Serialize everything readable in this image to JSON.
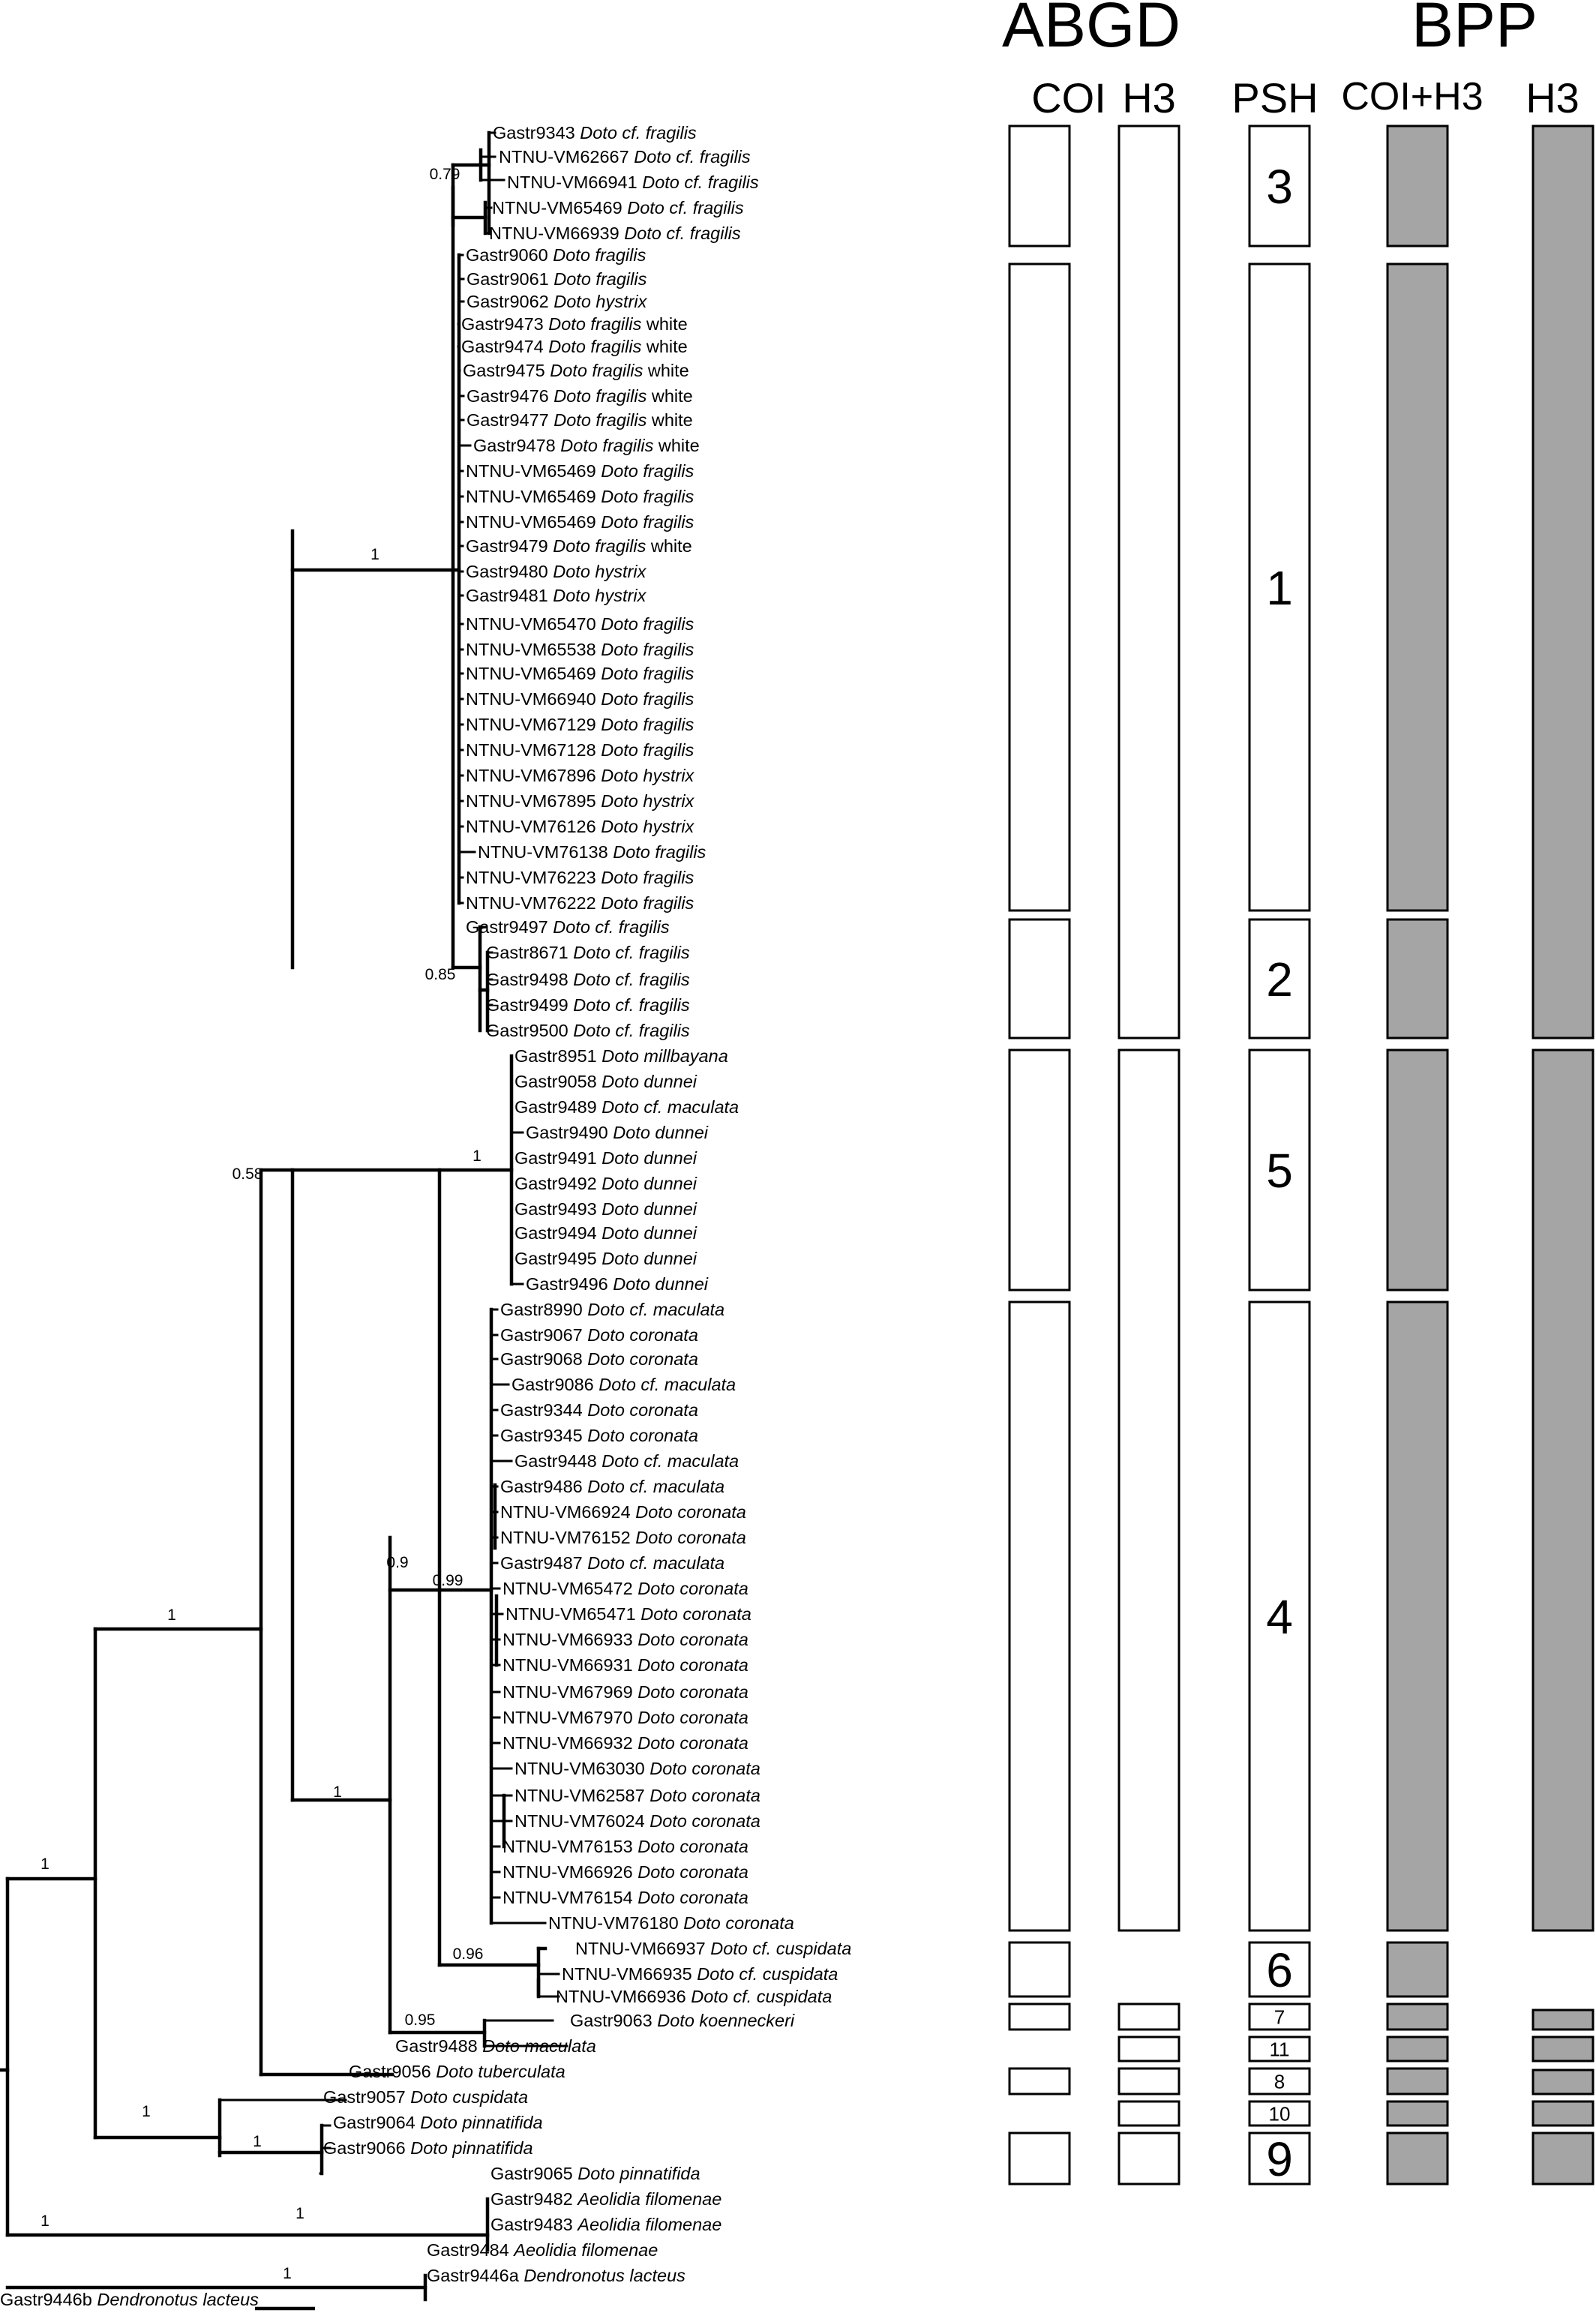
{
  "headers": {
    "abgd": "ABGD",
    "bpp": "BPP",
    "coi": "COI",
    "h3_abgd": "H3",
    "psh": "PSH",
    "coi_h3": "COI+H3",
    "h3_bpp": "H3"
  },
  "colors": {
    "box_fill_bpp": "#a5a5a5",
    "box_fill_abgd": "#ffffff",
    "stroke": "#000000"
  },
  "tips": [
    {
      "code": "Gastr9343",
      "species": "Doto cf. fragilis",
      "suffix": ""
    },
    {
      "code": "NTNU-VM62667",
      "species": "Doto cf. fragilis",
      "suffix": ""
    },
    {
      "code": "NTNU-VM66941",
      "species": "Doto cf. fragilis",
      "suffix": ""
    },
    {
      "code": "NTNU-VM65469",
      "species": "Doto cf. fragilis",
      "suffix": ""
    },
    {
      "code": "NTNU-VM66939",
      "species": "Doto cf. fragilis",
      "suffix": ""
    },
    {
      "code": "Gastr9060",
      "species": "Doto fragilis",
      "suffix": ""
    },
    {
      "code": "Gastr9061",
      "species": "Doto fragilis",
      "suffix": ""
    },
    {
      "code": "Gastr9062",
      "species": "Doto hystrix",
      "suffix": ""
    },
    {
      "code": "Gastr9473",
      "species": "Doto fragilis",
      "suffix": "white"
    },
    {
      "code": "Gastr9474",
      "species": "Doto fragilis",
      "suffix": "white"
    },
    {
      "code": "Gastr9475",
      "species": "Doto fragilis",
      "suffix": "white"
    },
    {
      "code": "Gastr9476",
      "species": "Doto fragilis",
      "suffix": "white"
    },
    {
      "code": "Gastr9477",
      "species": "Doto fragilis",
      "suffix": "white"
    },
    {
      "code": "Gastr9478",
      "species": "Doto fragilis",
      "suffix": "white"
    },
    {
      "code": "NTNU-VM65469",
      "species": "Doto fragilis",
      "suffix": ""
    },
    {
      "code": "NTNU-VM65469",
      "species": "Doto fragilis",
      "suffix": ""
    },
    {
      "code": "NTNU-VM65469",
      "species": "Doto fragilis",
      "suffix": ""
    },
    {
      "code": "Gastr9479",
      "species": "Doto fragilis",
      "suffix": "white"
    },
    {
      "code": "Gastr9480",
      "species": "Doto hystrix",
      "suffix": ""
    },
    {
      "code": "Gastr9481",
      "species": "Doto hystrix",
      "suffix": ""
    },
    {
      "code": "NTNU-VM65470",
      "species": "Doto fragilis",
      "suffix": ""
    },
    {
      "code": "NTNU-VM65538",
      "species": "Doto fragilis",
      "suffix": ""
    },
    {
      "code": "NTNU-VM65469",
      "species": "Doto fragilis",
      "suffix": ""
    },
    {
      "code": "NTNU-VM66940",
      "species": "Doto fragilis",
      "suffix": ""
    },
    {
      "code": "NTNU-VM67129",
      "species": "Doto fragilis",
      "suffix": ""
    },
    {
      "code": "NTNU-VM67128",
      "species": "Doto fragilis",
      "suffix": ""
    },
    {
      "code": "NTNU-VM67896",
      "species": "Doto hystrix",
      "suffix": ""
    },
    {
      "code": "NTNU-VM67895",
      "species": "Doto hystrix",
      "suffix": ""
    },
    {
      "code": "NTNU-VM76126",
      "species": "Doto hystrix",
      "suffix": ""
    },
    {
      "code": "NTNU-VM76138",
      "species": "Doto fragilis",
      "suffix": ""
    },
    {
      "code": "NTNU-VM76223",
      "species": "Doto fragilis",
      "suffix": ""
    },
    {
      "code": "NTNU-VM76222",
      "species": "Doto fragilis",
      "suffix": ""
    },
    {
      "code": "Gastr9497",
      "species": "Doto cf. fragilis",
      "suffix": ""
    },
    {
      "code": "Gastr8671",
      "species": "Doto cf. fragilis",
      "suffix": ""
    },
    {
      "code": "Gastr9498",
      "species": "Doto cf. fragilis",
      "suffix": ""
    },
    {
      "code": "Gastr9499",
      "species": "Doto cf. fragilis",
      "suffix": ""
    },
    {
      "code": "Gastr9500",
      "species": "Doto cf. fragilis",
      "suffix": ""
    },
    {
      "code": "Gastr8951",
      "species": "Doto millbayana",
      "suffix": ""
    },
    {
      "code": "Gastr9058",
      "species": "Doto dunnei",
      "suffix": ""
    },
    {
      "code": "Gastr9489",
      "species": "Doto cf. maculata",
      "suffix": ""
    },
    {
      "code": "Gastr9490",
      "species": "Doto dunnei",
      "suffix": ""
    },
    {
      "code": "Gastr9491",
      "species": "Doto dunnei",
      "suffix": ""
    },
    {
      "code": "Gastr9492",
      "species": "Doto dunnei",
      "suffix": ""
    },
    {
      "code": "Gastr9493",
      "species": "Doto dunnei",
      "suffix": ""
    },
    {
      "code": "Gastr9494",
      "species": "Doto dunnei",
      "suffix": ""
    },
    {
      "code": "Gastr9495",
      "species": "Doto dunnei",
      "suffix": ""
    },
    {
      "code": "Gastr9496",
      "species": "Doto dunnei",
      "suffix": ""
    },
    {
      "code": "Gastr8990",
      "species": "Doto cf. maculata",
      "suffix": ""
    },
    {
      "code": "Gastr9067",
      "species": "Doto coronata",
      "suffix": ""
    },
    {
      "code": "Gastr9068",
      "species": "Doto coronata",
      "suffix": ""
    },
    {
      "code": "Gastr9086",
      "species": "Doto cf. maculata",
      "suffix": ""
    },
    {
      "code": "Gastr9344",
      "species": "Doto coronata",
      "suffix": ""
    },
    {
      "code": "Gastr9345",
      "species": "Doto coronata",
      "suffix": ""
    },
    {
      "code": "Gastr9448",
      "species": "Doto cf. maculata",
      "suffix": ""
    },
    {
      "code": "Gastr9486",
      "species": "Doto cf. maculata",
      "suffix": ""
    },
    {
      "code": "NTNU-VM66924",
      "species": "Doto coronata",
      "suffix": ""
    },
    {
      "code": "NTNU-VM76152",
      "species": "Doto coronata",
      "suffix": ""
    },
    {
      "code": "Gastr9487",
      "species": "Doto cf. maculata",
      "suffix": ""
    },
    {
      "code": "NTNU-VM65472",
      "species": "Doto coronata",
      "suffix": ""
    },
    {
      "code": "NTNU-VM65471",
      "species": "Doto coronata",
      "suffix": ""
    },
    {
      "code": "NTNU-VM66933",
      "species": "Doto coronata",
      "suffix": ""
    },
    {
      "code": "NTNU-VM66931",
      "species": "Doto coronata",
      "suffix": ""
    },
    {
      "code": "NTNU-VM67969",
      "species": "Doto coronata",
      "suffix": ""
    },
    {
      "code": "NTNU-VM67970",
      "species": "Doto coronata",
      "suffix": ""
    },
    {
      "code": "NTNU-VM66932",
      "species": "Doto coronata",
      "suffix": ""
    },
    {
      "code": "NTNU-VM63030",
      "species": "Doto coronata",
      "suffix": ""
    },
    {
      "code": "NTNU-VM62587",
      "species": "Doto coronata",
      "suffix": ""
    },
    {
      "code": "NTNU-VM76024",
      "species": "Doto coronata",
      "suffix": ""
    },
    {
      "code": "NTNU-VM76153",
      "species": "Doto coronata",
      "suffix": ""
    },
    {
      "code": "NTNU-VM66926",
      "species": "Doto coronata",
      "suffix": ""
    },
    {
      "code": "NTNU-VM76154",
      "species": "Doto coronata",
      "suffix": ""
    },
    {
      "code": "NTNU-VM76180",
      "species": "Doto coronata",
      "suffix": ""
    },
    {
      "code": "NTNU-VM66937",
      "species": "Doto cf. cuspidata",
      "suffix": ""
    },
    {
      "code": "NTNU-VM66935",
      "species": "Doto cf. cuspidata",
      "suffix": ""
    },
    {
      "code": "NTNU-VM66936",
      "species": "Doto cf. cuspidata",
      "suffix": ""
    },
    {
      "code": "Gastr9063",
      "species": "Doto koenneckeri",
      "suffix": ""
    },
    {
      "code": "Gastr9488",
      "species": "Doto maculata",
      "suffix": ""
    },
    {
      "code": "Gastr9056",
      "species": "Doto tuberculata",
      "suffix": ""
    },
    {
      "code": "Gastr9057",
      "species": "Doto cuspidata",
      "suffix": ""
    },
    {
      "code": "Gastr9064",
      "species": "Doto pinnatifida",
      "suffix": ""
    },
    {
      "code": "Gastr9066",
      "species": "Doto pinnatifida",
      "suffix": ""
    },
    {
      "code": "Gastr9065",
      "species": "Doto pinnatifida",
      "suffix": ""
    },
    {
      "code": "Gastr9482",
      "species": "Aeolidia filomenae",
      "suffix": ""
    },
    {
      "code": "Gastr9483",
      "species": "Aeolidia filomenae",
      "suffix": ""
    },
    {
      "code": "Gastr9484",
      "species": "Aeolidia filomenae",
      "suffix": ""
    },
    {
      "code": "Gastr9446a",
      "species": "Dendronotus lacteus",
      "suffix": ""
    },
    {
      "code": "Gastr9446b",
      "species": "Dendronotus lacteus",
      "suffix": ""
    }
  ],
  "supports": [
    {
      "id": "s079",
      "value": "0.79"
    },
    {
      "id": "s1a",
      "value": "1"
    },
    {
      "id": "s085",
      "value": "0.85"
    },
    {
      "id": "s058",
      "value": "0.58"
    },
    {
      "id": "s1b",
      "value": "1"
    },
    {
      "id": "s09",
      "value": "0.9"
    },
    {
      "id": "s099",
      "value": "0.99"
    },
    {
      "id": "s1c",
      "value": "1"
    },
    {
      "id": "s096",
      "value": "0.96"
    },
    {
      "id": "s095",
      "value": "0.95"
    },
    {
      "id": "s1d",
      "value": "1"
    },
    {
      "id": "s1e",
      "value": "1"
    },
    {
      "id": "s1f",
      "value": "1"
    },
    {
      "id": "s1g",
      "value": "1"
    },
    {
      "id": "s1h",
      "value": "1"
    },
    {
      "id": "s1i",
      "value": "1"
    },
    {
      "id": "s1j",
      "value": "1"
    }
  ],
  "groups": [
    {
      "psh": "3",
      "abgd_coi": true,
      "abgd_h3": true,
      "bpp_coi_h3": true,
      "bpp_h3": true
    },
    {
      "psh": "1",
      "abgd_coi": true,
      "abgd_h3": true,
      "bpp_coi_h3": true,
      "bpp_h3": true
    },
    {
      "psh": "2",
      "abgd_coi": true,
      "abgd_h3": true,
      "bpp_coi_h3": true,
      "bpp_h3": true
    },
    {
      "psh": "5",
      "abgd_coi": true,
      "abgd_h3": true,
      "bpp_coi_h3": true,
      "bpp_h3": true
    },
    {
      "psh": "4",
      "abgd_coi": true,
      "abgd_h3": true,
      "bpp_coi_h3": true,
      "bpp_h3": true
    },
    {
      "psh": "6",
      "abgd_coi": true,
      "abgd_h3": false,
      "bpp_coi_h3": true,
      "bpp_h3": false
    },
    {
      "psh": "7",
      "abgd_coi": true,
      "abgd_h3": true,
      "bpp_coi_h3": true,
      "bpp_h3": true
    },
    {
      "psh": "11",
      "abgd_coi": false,
      "abgd_h3": true,
      "bpp_coi_h3": true,
      "bpp_h3": true
    },
    {
      "psh": "8",
      "abgd_coi": true,
      "abgd_h3": true,
      "bpp_coi_h3": true,
      "bpp_h3": true
    },
    {
      "psh": "10",
      "abgd_coi": false,
      "abgd_h3": true,
      "bpp_coi_h3": true,
      "bpp_h3": true
    },
    {
      "psh": "9",
      "abgd_coi": true,
      "abgd_h3": true,
      "bpp_coi_h3": true,
      "bpp_h3": true
    }
  ]
}
